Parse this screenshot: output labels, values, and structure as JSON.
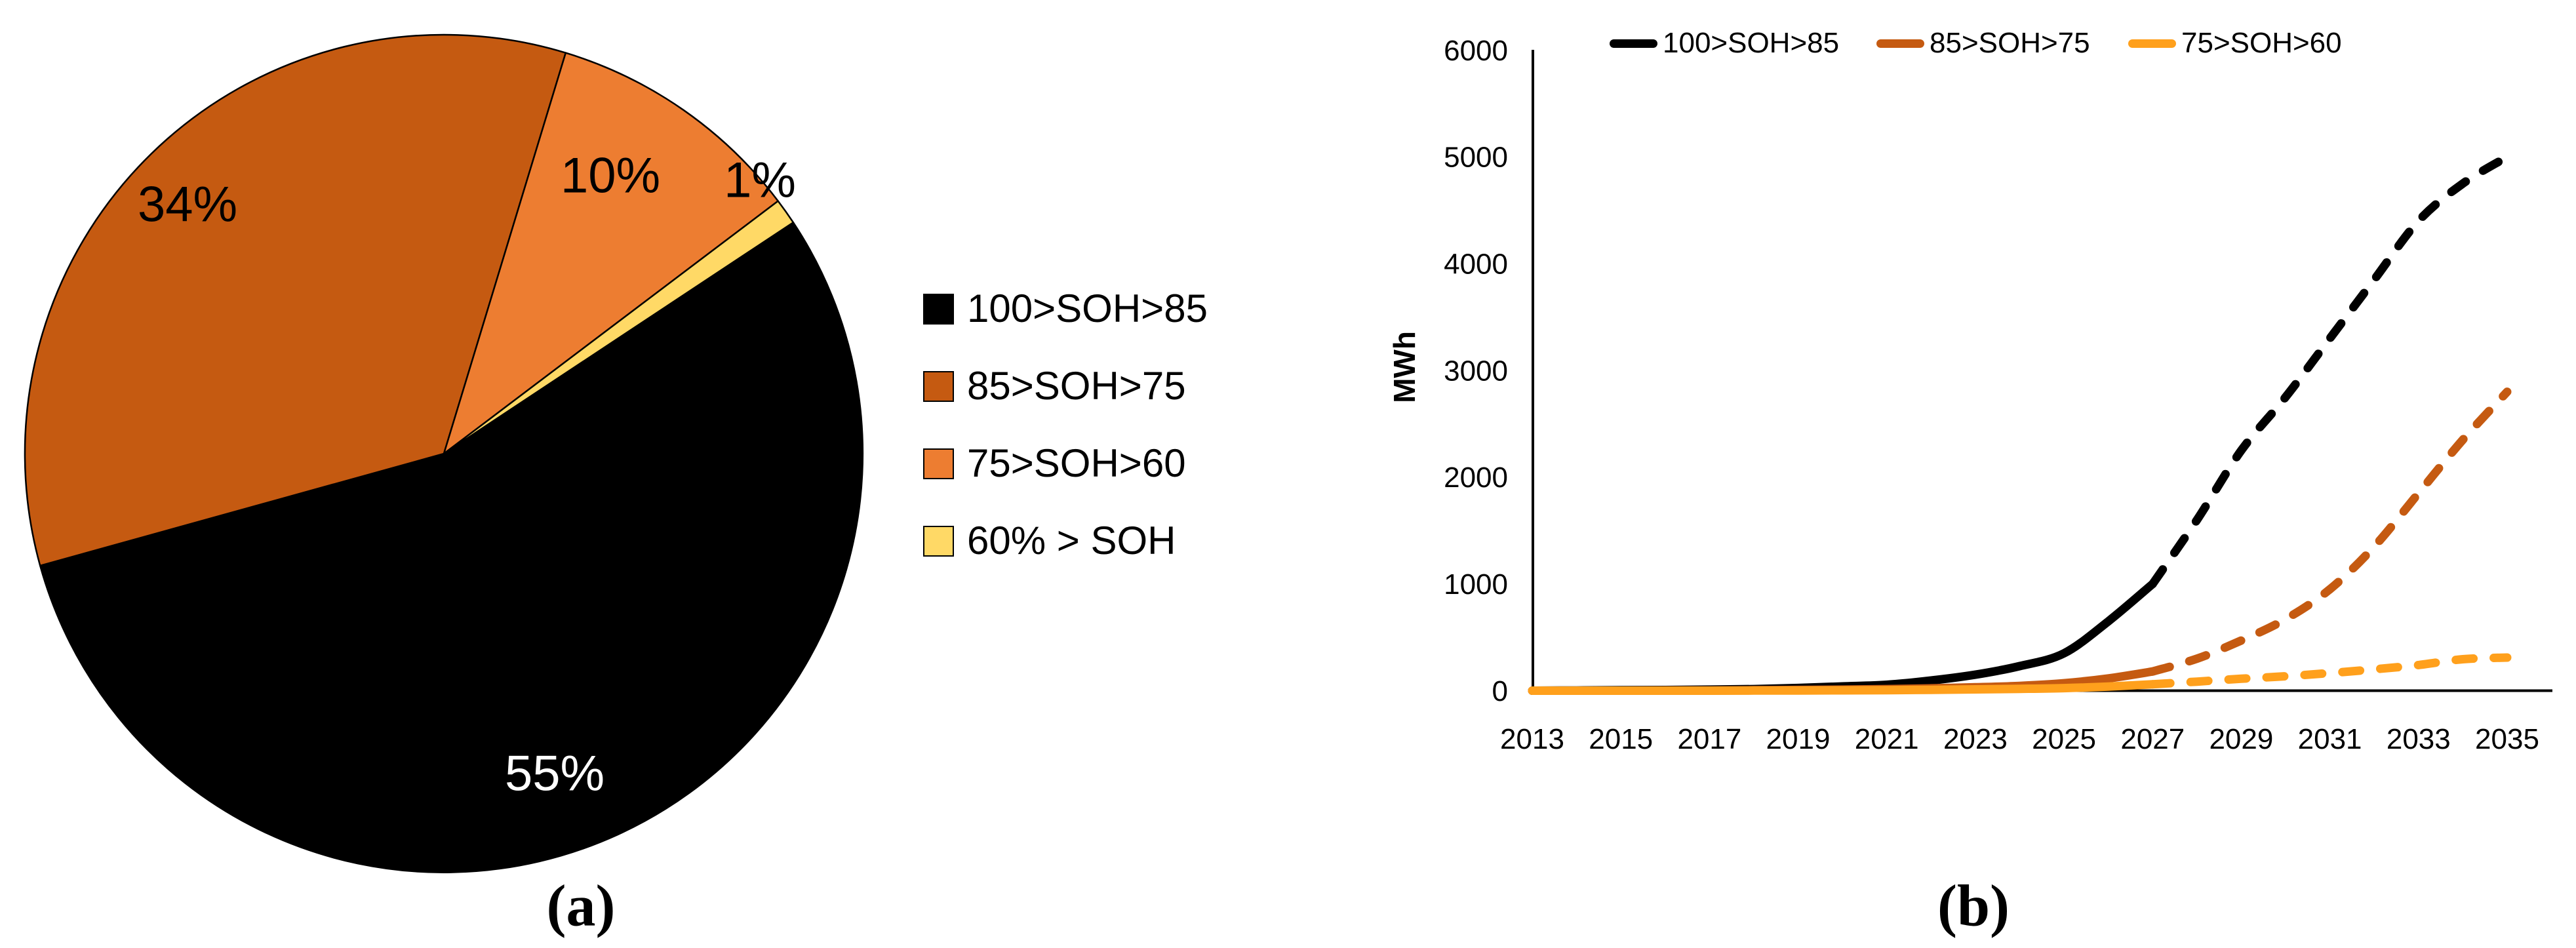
{
  "figure": {
    "caption_a": "(a)",
    "caption_b": "(b)",
    "background": "#ffffff"
  },
  "chart_data": [
    {
      "type": "pie",
      "panel": "a",
      "title": "",
      "legend_position": "right",
      "start_angle_deg_clockwise_from_north": 56.5,
      "slices": [
        {
          "label": "100>SOH>85",
          "value_pct": 55,
          "color": "#000000",
          "data_label": "55%",
          "data_label_color": "#ffffff"
        },
        {
          "label": "85>SOH>75",
          "value_pct": 34,
          "color": "#C55A11",
          "data_label": "34%",
          "data_label_color": "#000000"
        },
        {
          "label": "75>SOH>60",
          "value_pct": 10,
          "color": "#ED7D31",
          "data_label": "10%",
          "data_label_color": "#000000"
        },
        {
          "label": "60% > SOH",
          "value_pct": 1,
          "color": "#FFD966",
          "data_label": "1%",
          "data_label_color": "#000000"
        }
      ]
    },
    {
      "type": "line",
      "panel": "b",
      "title": "",
      "xlabel": "",
      "ylabel": "MWh",
      "ylim": [
        0,
        6000
      ],
      "ytick_labels": [
        "0",
        "1000",
        "2000",
        "3000",
        "4000",
        "5000",
        "6000"
      ],
      "ytick_values": [
        0,
        1000,
        2000,
        3000,
        4000,
        5000,
        6000
      ],
      "xtick_labels": [
        "2013",
        "2015",
        "2017",
        "2019",
        "2021",
        "2023",
        "2025",
        "2027",
        "2029",
        "2031",
        "2033",
        "2035"
      ],
      "x_years": [
        2013,
        2014,
        2015,
        2016,
        2017,
        2018,
        2019,
        2020,
        2021,
        2022,
        2023,
        2024,
        2025,
        2026,
        2027,
        2028,
        2029,
        2030,
        2031,
        2032,
        2033,
        2034,
        2035
      ],
      "grid": false,
      "legend_position": "top",
      "series": [
        {
          "name": "100>SOH>85",
          "color": "#000000",
          "style": "solid-then-dashed",
          "dashed_from_year": 2027,
          "values": [
            0,
            2,
            4,
            6,
            10,
            15,
            25,
            40,
            55,
            95,
            150,
            230,
            350,
            650,
            1000,
            1600,
            2250,
            2750,
            3300,
            3850,
            4400,
            4750,
            5000
          ]
        },
        {
          "name": "85>SOH>75",
          "color": "#C55A11",
          "style": "solid-then-dashed",
          "dashed_from_year": 2027,
          "values": [
            0,
            0,
            0,
            1,
            2,
            4,
            7,
            10,
            15,
            22,
            32,
            45,
            70,
            115,
            180,
            300,
            470,
            670,
            950,
            1350,
            1850,
            2350,
            2800
          ]
        },
        {
          "name": "75>SOH>60",
          "color": "#FFA01C",
          "style": "solid-then-dashed",
          "dashed_from_year": 2027,
          "values": [
            0,
            0,
            0,
            0,
            0,
            1,
            2,
            3,
            5,
            8,
            12,
            17,
            24,
            38,
            60,
            85,
            112,
            135,
            165,
            200,
            240,
            295,
            310
          ]
        }
      ]
    }
  ]
}
